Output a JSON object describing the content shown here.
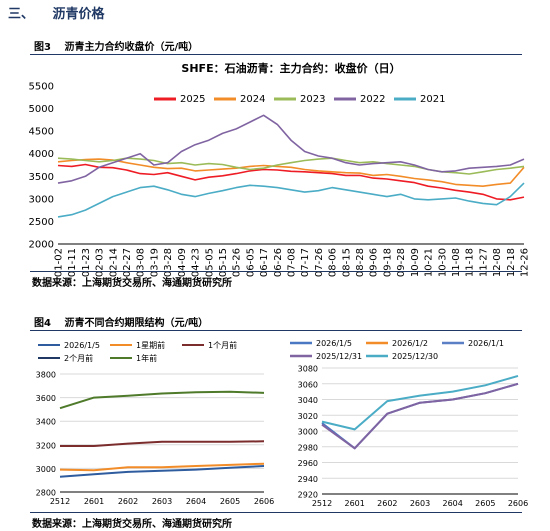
{
  "section": {
    "number": "三、",
    "title": "沥青价格"
  },
  "figure3": {
    "label": "图3",
    "caption": "沥青主力合约收盘价（元/吨）"
  },
  "figure4": {
    "label": "图4",
    "caption": "沥青不同合约期限结构（元/吨）"
  },
  "sources": {
    "source1": "数据来源：上海期货交易所、海通期货研究所",
    "source2": "数据来源：上海期货交易所、海通期货研究所"
  },
  "chart_data": [
    {
      "type": "line",
      "title": "SHFE：石油沥青：主力合约：收盘价（日）",
      "xlabel": "",
      "ylabel": "",
      "ylim": [
        2000,
        5500
      ],
      "yticks": [
        2000,
        2500,
        3000,
        3500,
        4000,
        4500,
        5000,
        5500
      ],
      "categories": [
        "01-02",
        "01-11",
        "01-23",
        "02-03",
        "02-14",
        "02-27",
        "03-08",
        "03-19",
        "03-28",
        "04-09",
        "04-23",
        "05-05",
        "05-15",
        "05-26",
        "06-05",
        "06-17",
        "06-26",
        "07-08",
        "07-17",
        "07-26",
        "08-06",
        "08-15",
        "08-28",
        "09-06",
        "09-18",
        "09-28",
        "10-09",
        "10-21",
        "10-30",
        "11-08",
        "11-18",
        "11-27",
        "12-08",
        "12-18",
        "12-26"
      ],
      "legend_position": "top",
      "grid": false,
      "series": [
        {
          "name": "2025",
          "color": "#ee1c25",
          "values": [
            3740,
            3720,
            3760,
            3700,
            3690,
            3640,
            3560,
            3540,
            3580,
            3500,
            3420,
            3480,
            3510,
            3560,
            3620,
            3650,
            3640,
            3610,
            3600,
            3580,
            3560,
            3520,
            3520,
            3460,
            3440,
            3400,
            3360,
            3280,
            3240,
            3190,
            3150,
            3100,
            3000,
            2980,
            3040
          ]
        },
        {
          "name": "2024",
          "color": "#f28c28",
          "values": [
            3820,
            3850,
            3870,
            3880,
            3860,
            3800,
            3750,
            3700,
            3670,
            3680,
            3620,
            3640,
            3660,
            3680,
            3720,
            3740,
            3720,
            3700,
            3650,
            3620,
            3600,
            3580,
            3570,
            3520,
            3540,
            3500,
            3450,
            3420,
            3380,
            3320,
            3300,
            3280,
            3320,
            3350,
            3700
          ]
        },
        {
          "name": "2023",
          "color": "#9bbb59",
          "values": [
            3900,
            3880,
            3850,
            3820,
            3850,
            3900,
            3880,
            3850,
            3780,
            3800,
            3750,
            3780,
            3760,
            3700,
            3650,
            3680,
            3750,
            3800,
            3850,
            3880,
            3900,
            3850,
            3800,
            3820,
            3780,
            3750,
            3720,
            3650,
            3600,
            3580,
            3550,
            3600,
            3650,
            3680,
            3720
          ]
        },
        {
          "name": "2022",
          "color": "#8064a2",
          "values": [
            3350,
            3400,
            3500,
            3700,
            3800,
            3900,
            4000,
            3750,
            3800,
            4050,
            4200,
            4300,
            4450,
            4550,
            4700,
            4850,
            4650,
            4300,
            4050,
            3950,
            3900,
            3800,
            3750,
            3780,
            3800,
            3820,
            3750,
            3650,
            3600,
            3620,
            3680,
            3700,
            3720,
            3750,
            3880
          ]
        },
        {
          "name": "2021",
          "color": "#4bacc6",
          "values": [
            2600,
            2650,
            2750,
            2900,
            3050,
            3150,
            3250,
            3280,
            3200,
            3100,
            3050,
            3120,
            3180,
            3250,
            3300,
            3280,
            3250,
            3200,
            3150,
            3180,
            3250,
            3200,
            3150,
            3100,
            3050,
            3100,
            3000,
            2980,
            3000,
            3020,
            2950,
            2900,
            2870,
            3050,
            3350
          ]
        }
      ]
    },
    {
      "type": "line",
      "title": "",
      "ylim": [
        2800,
        3800
      ],
      "yticks": [
        2800,
        3000,
        3200,
        3400,
        3600,
        3800
      ],
      "categories": [
        "2512",
        "2601",
        "2602",
        "2603",
        "2604",
        "2605",
        "2606"
      ],
      "legend_position": "top",
      "grid": true,
      "series": [
        {
          "name": "2026/1/5",
          "color": "#2e5c9e",
          "values": [
            2930,
            2950,
            2970,
            2980,
            2990,
            3005,
            3020
          ]
        },
        {
          "name": "1星期前",
          "color": "#f28c28",
          "values": [
            2990,
            2985,
            3010,
            3010,
            3020,
            3030,
            3040
          ]
        },
        {
          "name": "1个月前",
          "color": "#7b2c2c",
          "values": [
            3190,
            3190,
            3210,
            3225,
            3225,
            3225,
            3230
          ]
        },
        {
          "name": "2个月前",
          "color": "#1f3864",
          "values": [
            null,
            null,
            null,
            null,
            null,
            null,
            null
          ]
        },
        {
          "name": "1年前",
          "color": "#4e7a2a",
          "values": [
            3510,
            3600,
            3615,
            3635,
            3645,
            3650,
            3640
          ]
        }
      ]
    },
    {
      "type": "line",
      "title": "",
      "ylim": [
        2920,
        3080
      ],
      "yticks": [
        2920,
        2940,
        2960,
        2980,
        3000,
        3020,
        3040,
        3060,
        3080
      ],
      "categories": [
        "2512",
        "2601",
        "2602",
        "2603",
        "2604",
        "2605",
        "2606"
      ],
      "legend_position": "top",
      "grid": true,
      "series": [
        {
          "name": "2026/1/5",
          "color": "#4a78c2",
          "values": [
            3010,
            2978,
            3022,
            3036,
            3040,
            3048,
            3060
          ]
        },
        {
          "name": "2026/1/2",
          "color": "#f28c28",
          "values": [
            null,
            null,
            null,
            null,
            null,
            null,
            null
          ]
        },
        {
          "name": "2026/1/1",
          "color": "#5b7fc5",
          "values": [
            null,
            null,
            null,
            null,
            null,
            null,
            null
          ]
        },
        {
          "name": "2025/12/31",
          "color": "#8064a2",
          "values": [
            3008,
            2978,
            3022,
            3036,
            3040,
            3048,
            3060
          ]
        },
        {
          "name": "2025/12/30",
          "color": "#4bacc6",
          "values": [
            3012,
            3002,
            3038,
            3045,
            3050,
            3058,
            3070
          ]
        }
      ]
    }
  ]
}
